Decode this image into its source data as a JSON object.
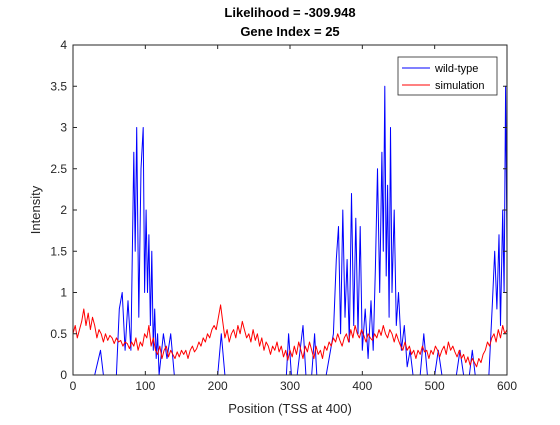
{
  "chart_data": {
    "type": "line",
    "title": "Likelihood = -309.948",
    "subtitle": "Gene Index = 25",
    "xlabel": "Position (TSS at 400)",
    "ylabel": "Intensity",
    "xlim": [
      0,
      600
    ],
    "ylim": [
      0,
      4
    ],
    "x_ticks": [
      0,
      100,
      200,
      300,
      400,
      500,
      600
    ],
    "y_ticks": [
      0,
      0.5,
      1,
      1.5,
      2,
      2.5,
      3,
      3.5,
      4
    ],
    "grid": false,
    "legend_position": "top-right",
    "series": [
      {
        "name": "wild-type",
        "color": "#0000ff",
        "points": [
          [
            0,
            0
          ],
          [
            30,
            0
          ],
          [
            38,
            0.3
          ],
          [
            42,
            0
          ],
          [
            60,
            0
          ],
          [
            64,
            0.8
          ],
          [
            68,
            1.0
          ],
          [
            72,
            0.3
          ],
          [
            76,
            0.9
          ],
          [
            80,
            0.3
          ],
          [
            84,
            2.7
          ],
          [
            86,
            1.5
          ],
          [
            88,
            3.0
          ],
          [
            91,
            0.7
          ],
          [
            94,
            2.5
          ],
          [
            97,
            3.0
          ],
          [
            99,
            1.0
          ],
          [
            101,
            2.0
          ],
          [
            103,
            1.0
          ],
          [
            105,
            1.7
          ],
          [
            107,
            0.6
          ],
          [
            109,
            1.5
          ],
          [
            111,
            0.3
          ],
          [
            113,
            0.8
          ],
          [
            115,
            0.2
          ],
          [
            117,
            0.5
          ],
          [
            119,
            0
          ],
          [
            125,
            0.5
          ],
          [
            130,
            0.2
          ],
          [
            135,
            0.5
          ],
          [
            140,
            0
          ],
          [
            145,
            0
          ],
          [
            200,
            0
          ],
          [
            205,
            0.5
          ],
          [
            210,
            0
          ],
          [
            295,
            0
          ],
          [
            298,
            0.5
          ],
          [
            302,
            0
          ],
          [
            310,
            0
          ],
          [
            318,
            0.6
          ],
          [
            322,
            0
          ],
          [
            330,
            0
          ],
          [
            334,
            0.5
          ],
          [
            337,
            0
          ],
          [
            350,
            0
          ],
          [
            360,
            0.5
          ],
          [
            364,
            1.4
          ],
          [
            367,
            1.8
          ],
          [
            370,
            0.5
          ],
          [
            373,
            2.0
          ],
          [
            376,
            0.7
          ],
          [
            379,
            1.4
          ],
          [
            382,
            0.4
          ],
          [
            385,
            2.2
          ],
          [
            388,
            0.6
          ],
          [
            391,
            1.9
          ],
          [
            394,
            0.5
          ],
          [
            397,
            1.8
          ],
          [
            400,
            0.3
          ],
          [
            404,
            0.8
          ],
          [
            408,
            0.2
          ],
          [
            412,
            0.9
          ],
          [
            415,
            0.3
          ],
          [
            418,
            1.3
          ],
          [
            421,
            2.5
          ],
          [
            424,
            1.0
          ],
          [
            427,
            2.7
          ],
          [
            429,
            1.5
          ],
          [
            431,
            3.5
          ],
          [
            433,
            1.2
          ],
          [
            435,
            2.3
          ],
          [
            437,
            0.7
          ],
          [
            439,
            3.0
          ],
          [
            441,
            1.0
          ],
          [
            444,
            2.0
          ],
          [
            447,
            0.6
          ],
          [
            450,
            1.0
          ],
          [
            454,
            0.3
          ],
          [
            458,
            0.6
          ],
          [
            462,
            0.1
          ],
          [
            466,
            0.3
          ],
          [
            470,
            0
          ],
          [
            480,
            0
          ],
          [
            485,
            0.5
          ],
          [
            490,
            0
          ],
          [
            500,
            0
          ],
          [
            505,
            0.3
          ],
          [
            510,
            0
          ],
          [
            530,
            0
          ],
          [
            535,
            0.3
          ],
          [
            540,
            0
          ],
          [
            548,
            0
          ],
          [
            552,
            0.3
          ],
          [
            556,
            0
          ],
          [
            575,
            0
          ],
          [
            580,
            0.9
          ],
          [
            583,
            1.5
          ],
          [
            586,
            0.8
          ],
          [
            589,
            1.7
          ],
          [
            591,
            0.6
          ],
          [
            594,
            2.0
          ],
          [
            596,
            1.0
          ],
          [
            598,
            3.5
          ],
          [
            600,
            1.5
          ]
        ]
      },
      {
        "name": "simulation",
        "color": "#ff0000",
        "points": [
          [
            0,
            0.5
          ],
          [
            3,
            0.6
          ],
          [
            6,
            0.45
          ],
          [
            9,
            0.55
          ],
          [
            12,
            0.65
          ],
          [
            15,
            0.8
          ],
          [
            18,
            0.6
          ],
          [
            21,
            0.75
          ],
          [
            24,
            0.55
          ],
          [
            27,
            0.7
          ],
          [
            30,
            0.6
          ],
          [
            33,
            0.45
          ],
          [
            36,
            0.55
          ],
          [
            39,
            0.5
          ],
          [
            42,
            0.4
          ],
          [
            45,
            0.5
          ],
          [
            48,
            0.42
          ],
          [
            51,
            0.48
          ],
          [
            54,
            0.45
          ],
          [
            57,
            0.38
          ],
          [
            60,
            0.45
          ],
          [
            63,
            0.4
          ],
          [
            66,
            0.42
          ],
          [
            69,
            0.35
          ],
          [
            72,
            0.4
          ],
          [
            75,
            0.38
          ],
          [
            78,
            0.32
          ],
          [
            81,
            0.4
          ],
          [
            84,
            0.35
          ],
          [
            87,
            0.45
          ],
          [
            90,
            0.3
          ],
          [
            93,
            0.4
          ],
          [
            96,
            0.35
          ],
          [
            99,
            0.5
          ],
          [
            102,
            0.45
          ],
          [
            105,
            0.6
          ],
          [
            108,
            0.35
          ],
          [
            111,
            0.45
          ],
          [
            114,
            0.3
          ],
          [
            117,
            0.25
          ],
          [
            120,
            0.35
          ],
          [
            123,
            0.2
          ],
          [
            126,
            0.3
          ],
          [
            129,
            0.35
          ],
          [
            132,
            0.22
          ],
          [
            135,
            0.3
          ],
          [
            138,
            0.25
          ],
          [
            141,
            0.2
          ],
          [
            144,
            0.28
          ],
          [
            147,
            0.22
          ],
          [
            150,
            0.3
          ],
          [
            153,
            0.25
          ],
          [
            156,
            0.3
          ],
          [
            159,
            0.2
          ],
          [
            162,
            0.3
          ],
          [
            165,
            0.35
          ],
          [
            168,
            0.28
          ],
          [
            171,
            0.32
          ],
          [
            174,
            0.4
          ],
          [
            177,
            0.35
          ],
          [
            180,
            0.45
          ],
          [
            183,
            0.4
          ],
          [
            186,
            0.5
          ],
          [
            189,
            0.45
          ],
          [
            192,
            0.55
          ],
          [
            195,
            0.6
          ],
          [
            198,
            0.55
          ],
          [
            201,
            0.7
          ],
          [
            204,
            0.85
          ],
          [
            207,
            0.65
          ],
          [
            210,
            0.45
          ],
          [
            213,
            0.55
          ],
          [
            216,
            0.4
          ],
          [
            219,
            0.5
          ],
          [
            222,
            0.55
          ],
          [
            225,
            0.45
          ],
          [
            228,
            0.6
          ],
          [
            231,
            0.5
          ],
          [
            234,
            0.65
          ],
          [
            237,
            0.55
          ],
          [
            240,
            0.45
          ],
          [
            243,
            0.5
          ],
          [
            246,
            0.4
          ],
          [
            249,
            0.55
          ],
          [
            252,
            0.42
          ],
          [
            255,
            0.5
          ],
          [
            258,
            0.35
          ],
          [
            261,
            0.45
          ],
          [
            264,
            0.3
          ],
          [
            267,
            0.4
          ],
          [
            270,
            0.35
          ],
          [
            273,
            0.25
          ],
          [
            276,
            0.35
          ],
          [
            279,
            0.3
          ],
          [
            282,
            0.4
          ],
          [
            285,
            0.28
          ],
          [
            288,
            0.35
          ],
          [
            291,
            0.22
          ],
          [
            294,
            0.3
          ],
          [
            297,
            0.18
          ],
          [
            300,
            0.3
          ],
          [
            303,
            0.22
          ],
          [
            306,
            0.35
          ],
          [
            309,
            0.25
          ],
          [
            312,
            0.4
          ],
          [
            315,
            0.3
          ],
          [
            318,
            0.2
          ],
          [
            321,
            0.35
          ],
          [
            324,
            0.28
          ],
          [
            327,
            0.4
          ],
          [
            330,
            0.3
          ],
          [
            333,
            0.2
          ],
          [
            336,
            0.35
          ],
          [
            339,
            0.25
          ],
          [
            342,
            0.3
          ],
          [
            345,
            0.2
          ],
          [
            348,
            0.35
          ],
          [
            351,
            0.3
          ],
          [
            354,
            0.4
          ],
          [
            357,
            0.35
          ],
          [
            360,
            0.45
          ],
          [
            363,
            0.4
          ],
          [
            366,
            0.5
          ],
          [
            369,
            0.42
          ],
          [
            372,
            0.35
          ],
          [
            375,
            0.45
          ],
          [
            378,
            0.5
          ],
          [
            381,
            0.4
          ],
          [
            384,
            0.55
          ],
          [
            387,
            0.45
          ],
          [
            390,
            0.6
          ],
          [
            393,
            0.5
          ],
          [
            396,
            0.45
          ],
          [
            399,
            0.55
          ],
          [
            402,
            0.48
          ],
          [
            405,
            0.4
          ],
          [
            408,
            0.5
          ],
          [
            411,
            0.45
          ],
          [
            414,
            0.42
          ],
          [
            417,
            0.5
          ],
          [
            420,
            0.45
          ],
          [
            423,
            0.55
          ],
          [
            426,
            0.48
          ],
          [
            429,
            0.6
          ],
          [
            432,
            0.5
          ],
          [
            435,
            0.45
          ],
          [
            438,
            0.55
          ],
          [
            441,
            0.5
          ],
          [
            444,
            0.4
          ],
          [
            447,
            0.5
          ],
          [
            450,
            0.42
          ],
          [
            453,
            0.35
          ],
          [
            456,
            0.3
          ],
          [
            459,
            0.4
          ],
          [
            462,
            0.3
          ],
          [
            465,
            0.35
          ],
          [
            468,
            0.25
          ],
          [
            471,
            0.3
          ],
          [
            474,
            0.2
          ],
          [
            477,
            0.3
          ],
          [
            480,
            0.25
          ],
          [
            483,
            0.35
          ],
          [
            486,
            0.28
          ],
          [
            489,
            0.3
          ],
          [
            492,
            0.2
          ],
          [
            495,
            0.3
          ],
          [
            498,
            0.25
          ],
          [
            501,
            0.35
          ],
          [
            504,
            0.3
          ],
          [
            507,
            0.22
          ],
          [
            510,
            0.3
          ],
          [
            513,
            0.35
          ],
          [
            516,
            0.25
          ],
          [
            519,
            0.4
          ],
          [
            522,
            0.3
          ],
          [
            525,
            0.35
          ],
          [
            528,
            0.28
          ],
          [
            531,
            0.22
          ],
          [
            534,
            0.3
          ],
          [
            537,
            0.2
          ],
          [
            540,
            0.25
          ],
          [
            543,
            0.15
          ],
          [
            546,
            0.22
          ],
          [
            549,
            0.12
          ],
          [
            552,
            0.2
          ],
          [
            555,
            0.15
          ],
          [
            558,
            0.1
          ],
          [
            561,
            0.2
          ],
          [
            564,
            0.15
          ],
          [
            567,
            0.25
          ],
          [
            570,
            0.3
          ],
          [
            573,
            0.4
          ],
          [
            576,
            0.35
          ],
          [
            579,
            0.45
          ],
          [
            582,
            0.5
          ],
          [
            585,
            0.4
          ],
          [
            588,
            0.55
          ],
          [
            591,
            0.45
          ],
          [
            594,
            0.6
          ],
          [
            597,
            0.5
          ],
          [
            600,
            0.55
          ]
        ]
      }
    ]
  }
}
